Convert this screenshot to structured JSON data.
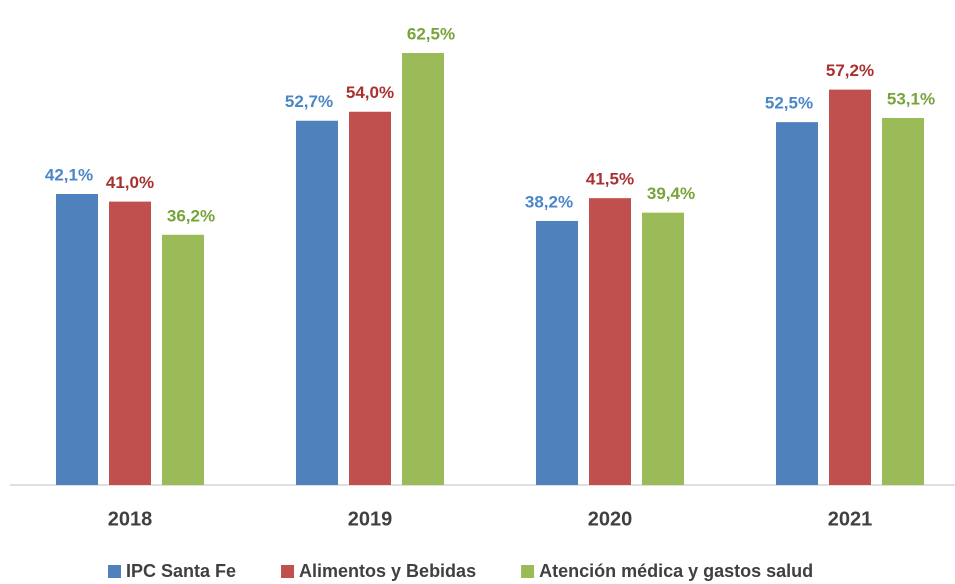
{
  "chart_data": {
    "type": "bar",
    "categories": [
      "2018",
      "2019",
      "2020",
      "2021"
    ],
    "series": [
      {
        "name": "IPC Santa Fe",
        "color": "#4f81bd",
        "label_color": "#4a86c8",
        "values": [
          42.1,
          52.7,
          38.2,
          52.5
        ],
        "value_labels": [
          "42,1%",
          "52,7%",
          "38,2%",
          "52,5%"
        ]
      },
      {
        "name": "Alimentos y Bebidas",
        "color": "#c0504d",
        "label_color": "#a83232",
        "values": [
          41.0,
          54.0,
          41.5,
          57.2
        ],
        "value_labels": [
          "41,0%",
          "54,0%",
          "41,5%",
          "57,2%"
        ]
      },
      {
        "name": "Atención médica y gastos salud",
        "color": "#9bbb59",
        "label_color": "#77a33a",
        "values": [
          36.2,
          62.5,
          39.4,
          53.1
        ],
        "value_labels": [
          "36,2%",
          "62,5%",
          "39,4%",
          "53,1%"
        ]
      }
    ],
    "legend": "bottom"
  }
}
